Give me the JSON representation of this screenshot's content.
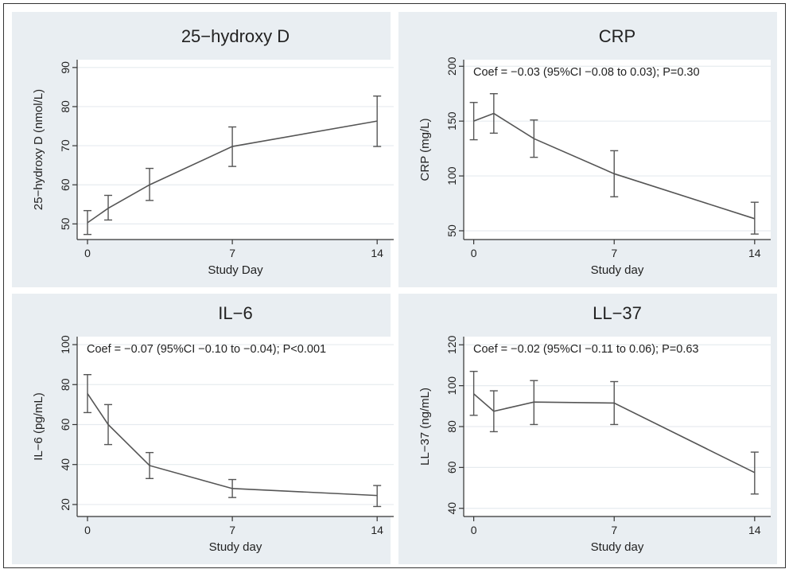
{
  "chart_data": [
    {
      "type": "line",
      "title": "25−hydroxy D",
      "xlabel": "Study Day",
      "ylabel": "25−hydroxy D (nmol/L)",
      "annotation": "",
      "xticks": [
        0,
        7,
        14
      ],
      "xlim": [
        -0.5,
        14.8
      ],
      "yticks": [
        50,
        60,
        70,
        80,
        90
      ],
      "ylim": [
        46,
        92
      ],
      "grid": true,
      "error_bars": true,
      "series": [
        {
          "x": [
            0,
            1,
            3,
            7,
            14
          ],
          "y": [
            50.3,
            54,
            60,
            69.8,
            76.3
          ],
          "lower": [
            47.3,
            51,
            56,
            64.7,
            69.8
          ],
          "upper": [
            53.4,
            57.3,
            64.2,
            74.8,
            82.7
          ]
        }
      ]
    },
    {
      "type": "line",
      "title": "CRP",
      "xlabel": "Study day",
      "ylabel": "CRP (mg/L)",
      "annotation": "Coef = −0.03 (95%CI −0.08 to 0.03); P=0.30",
      "xticks": [
        0,
        7,
        14
      ],
      "xlim": [
        -0.5,
        14.8
      ],
      "yticks": [
        50,
        100,
        150,
        200
      ],
      "ylim": [
        42,
        206
      ],
      "grid": true,
      "error_bars": true,
      "series": [
        {
          "x": [
            0,
            1,
            3,
            7,
            14
          ],
          "y": [
            150,
            157,
            134,
            102,
            61
          ],
          "lower": [
            133,
            139,
            117,
            81,
            47
          ],
          "upper": [
            167,
            175,
            151,
            123,
            76
          ]
        }
      ]
    },
    {
      "type": "line",
      "title": "IL−6",
      "xlabel": "Study day",
      "ylabel": "IL−6 (pg/mL)",
      "annotation": "Coef = −0.07 (95%CI −0.10 to −0.04); P<0.001",
      "xticks": [
        0,
        7,
        14
      ],
      "xlim": [
        -0.5,
        14.8
      ],
      "yticks": [
        20,
        40,
        60,
        80,
        100
      ],
      "ylim": [
        14,
        104
      ],
      "grid": true,
      "error_bars": true,
      "series": [
        {
          "x": [
            0,
            1,
            3,
            7,
            14
          ],
          "y": [
            75.5,
            60,
            39.5,
            28,
            24.5
          ],
          "lower": [
            66,
            50,
            33,
            23.5,
            19
          ],
          "upper": [
            85,
            70,
            46,
            32.5,
            29.5
          ]
        }
      ]
    },
    {
      "type": "line",
      "title": "LL−37",
      "xlabel": "Study day",
      "ylabel": "LL−37 (ng/mL)",
      "annotation": "Coef = −0.02 (95%CI −0.11 to 0.06); P=0.63",
      "xticks": [
        0,
        7,
        14
      ],
      "xlim": [
        -0.5,
        14.8
      ],
      "yticks": [
        40,
        60,
        80,
        100,
        120
      ],
      "ylim": [
        36,
        124
      ],
      "grid": true,
      "error_bars": true,
      "series": [
        {
          "x": [
            0,
            1,
            3,
            7,
            14
          ],
          "y": [
            96,
            87.5,
            92,
            91.5,
            57.5
          ],
          "lower": [
            85.5,
            77.5,
            81,
            81,
            47
          ],
          "upper": [
            107,
            97.5,
            102.5,
            102,
            67.5
          ]
        }
      ]
    }
  ]
}
